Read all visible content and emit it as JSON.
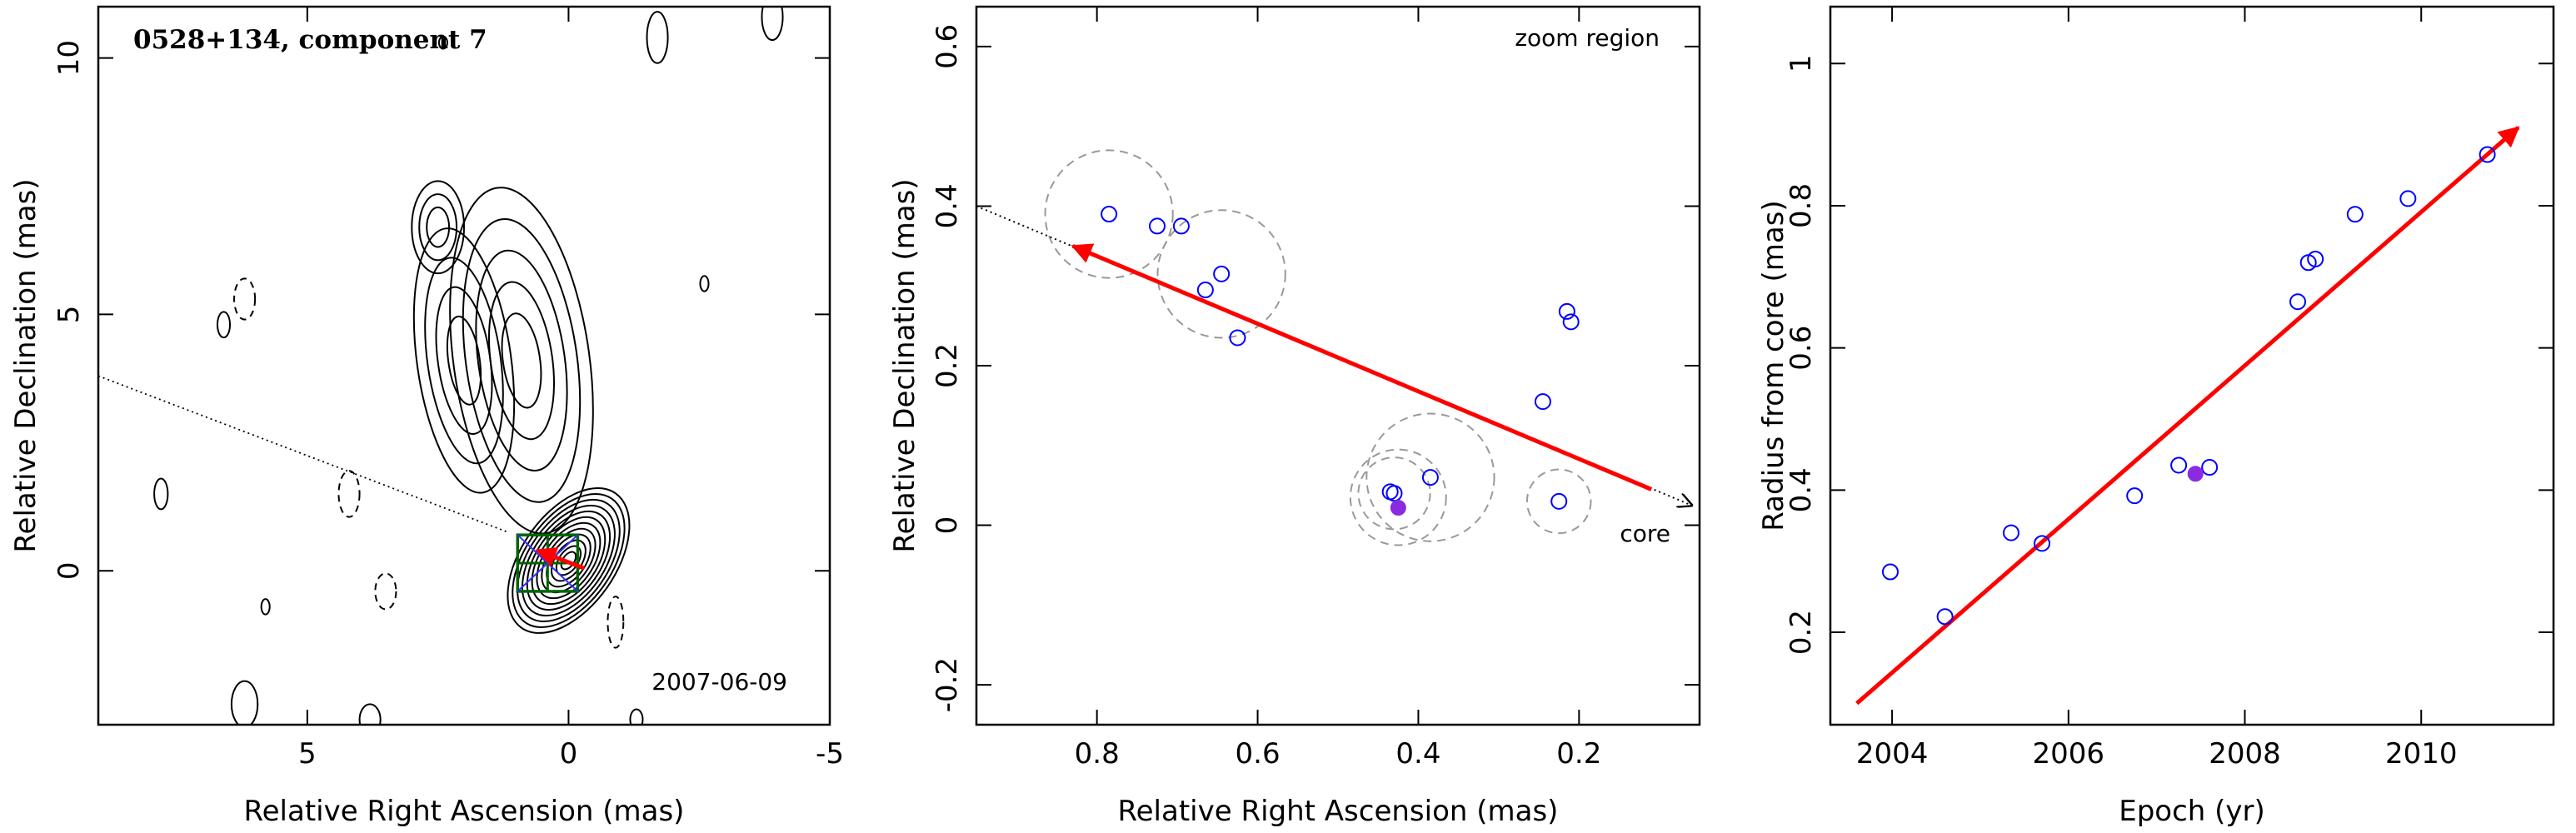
{
  "chart_data": [
    {
      "type": "contour-map",
      "title": "0528+134, component 7",
      "date_label": "2007-06-09",
      "xlabel": "Relative Right Ascension (mas)",
      "ylabel": "Relative Declination (mas)",
      "xlim": [
        9.0,
        -5.0
      ],
      "ylim": [
        -3.0,
        11.0
      ],
      "xticks": [
        5,
        0,
        -5
      ],
      "yticks": [
        0,
        5,
        10
      ],
      "trajectory_dotted": [
        [
          9.0,
          3.8
        ],
        [
          1.15,
          0.75
        ]
      ],
      "motion_arrow": {
        "from": [
          -0.3,
          0.05
        ],
        "to": [
          0.6,
          0.4
        ],
        "color": "#ff0000"
      },
      "box_center": [
        0.4,
        0.15
      ],
      "box_color": "#006400",
      "blobs": [
        {
          "x": 0,
          "y": 0.2,
          "rx": 0.9,
          "ry": 1.6,
          "rot": 35,
          "levels": 12
        },
        {
          "x": 0.9,
          "y": 4.1,
          "rx": 1.3,
          "ry": 3.4,
          "rot": -8,
          "levels": 5
        },
        {
          "x": 2.0,
          "y": 4.1,
          "rx": 0.9,
          "ry": 2.6,
          "rot": -8,
          "levels": 4
        },
        {
          "x": 2.5,
          "y": 6.7,
          "rx": 0.5,
          "ry": 0.9,
          "rot": 0,
          "levels": 3
        }
      ],
      "noise_contours": [
        {
          "x": 6.2,
          "y": 5.3,
          "rx": 0.2,
          "ry": 0.4,
          "dashed": true
        },
        {
          "x": 6.6,
          "y": 4.8,
          "rx": 0.12,
          "ry": 0.25,
          "dashed": false
        },
        {
          "x": 7.8,
          "y": 1.5,
          "rx": 0.13,
          "ry": 0.3,
          "dashed": false
        },
        {
          "x": 4.2,
          "y": 1.5,
          "rx": 0.2,
          "ry": 0.45,
          "dashed": true
        },
        {
          "x": 3.5,
          "y": -0.4,
          "rx": 0.2,
          "ry": 0.35,
          "dashed": true
        },
        {
          "x": 5.8,
          "y": -0.7,
          "rx": 0.08,
          "ry": 0.15,
          "dashed": false
        },
        {
          "x": -0.9,
          "y": -1.0,
          "rx": 0.15,
          "ry": 0.5,
          "dashed": true
        },
        {
          "x": -2.6,
          "y": 5.6,
          "rx": 0.08,
          "ry": 0.15,
          "dashed": false
        },
        {
          "x": -1.7,
          "y": 10.4,
          "rx": 0.2,
          "ry": 0.5,
          "dashed": false
        },
        {
          "x": -3.9,
          "y": 10.8,
          "rx": 0.2,
          "ry": 0.45,
          "dashed": false
        },
        {
          "x": 2.4,
          "y": 10.3,
          "rx": 0.08,
          "ry": 0.12,
          "dashed": false
        },
        {
          "x": 6.2,
          "y": -2.6,
          "rx": 0.25,
          "ry": 0.45,
          "dashed": false
        },
        {
          "x": 3.8,
          "y": -2.9,
          "rx": 0.2,
          "ry": 0.3,
          "dashed": false
        },
        {
          "x": -1.3,
          "y": -2.9,
          "rx": 0.12,
          "ry": 0.2,
          "dashed": false
        }
      ]
    },
    {
      "type": "scatter",
      "annotation_top": "zoom region",
      "annotation_core": "core",
      "xlabel": "Relative Right Ascension (mas)",
      "ylabel": "Relative Declination (mas)",
      "xlim": [
        0.95,
        0.05
      ],
      "ylim": [
        -0.25,
        0.65
      ],
      "xticks": [
        0.8,
        0.6,
        0.4,
        0.2
      ],
      "yticks": [
        -0.2,
        0,
        0.2,
        0.4,
        0.6
      ],
      "points": [
        {
          "x": 0.785,
          "y": 0.39
        },
        {
          "x": 0.725,
          "y": 0.375
        },
        {
          "x": 0.695,
          "y": 0.375
        },
        {
          "x": 0.645,
          "y": 0.315
        },
        {
          "x": 0.665,
          "y": 0.295
        },
        {
          "x": 0.625,
          "y": 0.235
        },
        {
          "x": 0.215,
          "y": 0.268
        },
        {
          "x": 0.21,
          "y": 0.255
        },
        {
          "x": 0.245,
          "y": 0.155
        },
        {
          "x": 0.385,
          "y": 0.06
        },
        {
          "x": 0.435,
          "y": 0.042
        },
        {
          "x": 0.43,
          "y": 0.04
        },
        {
          "x": 0.225,
          "y": 0.03
        }
      ],
      "highlight": {
        "x": 0.425,
        "y": 0.022
      },
      "error_circles": [
        {
          "x": 0.785,
          "y": 0.39,
          "r": 0.08
        },
        {
          "x": 0.645,
          "y": 0.315,
          "r": 0.08
        },
        {
          "x": 0.385,
          "y": 0.06,
          "r": 0.08
        },
        {
          "x": 0.43,
          "y": 0.04,
          "r": 0.045
        },
        {
          "x": 0.425,
          "y": 0.035,
          "r": 0.06
        },
        {
          "x": 0.225,
          "y": 0.03,
          "r": 0.04
        }
      ],
      "trajectory_dotted": [
        [
          0.95,
          0.4
        ],
        [
          0.06,
          0.025
        ]
      ],
      "motion_arrow": {
        "from": [
          0.11,
          0.045
        ],
        "to": [
          0.83,
          0.35
        ],
        "color": "#ff0000"
      },
      "point_color": "#0000ff",
      "highlight_color": "#8a2be2"
    },
    {
      "type": "scatter",
      "xlabel": "Epoch (yr)",
      "ylabel": "Radius from core (mas)",
      "xlim": [
        2003.3,
        2011.5
      ],
      "ylim": [
        0.07,
        1.08
      ],
      "xticks": [
        2004,
        2006,
        2008,
        2010
      ],
      "yticks": [
        0.2,
        0.4,
        0.6,
        0.8,
        1
      ],
      "points": [
        {
          "x": 2003.98,
          "y": 0.285
        },
        {
          "x": 2004.6,
          "y": 0.222
        },
        {
          "x": 2005.35,
          "y": 0.34
        },
        {
          "x": 2005.7,
          "y": 0.325
        },
        {
          "x": 2006.75,
          "y": 0.392
        },
        {
          "x": 2007.25,
          "y": 0.435
        },
        {
          "x": 2007.6,
          "y": 0.432
        },
        {
          "x": 2008.6,
          "y": 0.665
        },
        {
          "x": 2008.72,
          "y": 0.72
        },
        {
          "x": 2008.8,
          "y": 0.725
        },
        {
          "x": 2009.25,
          "y": 0.788
        },
        {
          "x": 2009.85,
          "y": 0.81
        },
        {
          "x": 2010.75,
          "y": 0.872
        }
      ],
      "highlight": {
        "x": 2007.44,
        "y": 0.423
      },
      "fit_arrow": {
        "from": [
          2003.6,
          0.1
        ],
        "to": [
          2011.1,
          0.91
        ],
        "color": "#ff0000"
      },
      "point_color": "#0000ff",
      "highlight_color": "#8a2be2"
    }
  ]
}
